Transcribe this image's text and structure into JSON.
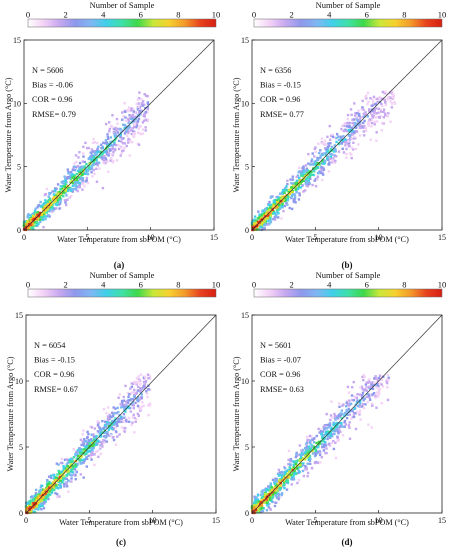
{
  "colorbar": {
    "title": "Number of Sample",
    "ticks": [
      0,
      2,
      4,
      6,
      8,
      10
    ],
    "range": [
      0,
      10
    ],
    "colors": [
      "#ffffff",
      "#f3d2f6",
      "#c7a8f0",
      "#8f98ec",
      "#7fb6f2",
      "#3fd0e8",
      "#3ee0a8",
      "#3ed94a",
      "#c9e83a",
      "#f6d12e",
      "#f39a2a",
      "#e8421e",
      "#d71f12"
    ]
  },
  "axes": {
    "xlabel": "Water Temperature from sbPOM (°C)",
    "ylabel": "Water Temperature from Argo (°C)",
    "xlim": [
      0,
      15
    ],
    "ylim": [
      0,
      15
    ],
    "xticks": [
      0,
      5,
      10,
      15
    ],
    "yticks": [
      0,
      5,
      10,
      15
    ],
    "reference_line": "1:1 diagonal"
  },
  "chart_data": [
    {
      "type": "heatmap",
      "panel_label": "(a)",
      "stats": {
        "n": "N = 5606",
        "bias": "Bias = -0.06",
        "cor": "COR = 0.96",
        "rmse": "RMSE= 0.79"
      },
      "x_extent": [
        0,
        10
      ],
      "y_extent": [
        0,
        11.5
      ]
    },
    {
      "type": "heatmap",
      "panel_label": "(b)",
      "stats": {
        "n": "N = 6356",
        "bias": "Bias = -0.15",
        "cor": "COR = 0.96",
        "rmse": "RMSE= 0.77"
      },
      "x_extent": [
        0,
        11.5
      ],
      "y_extent": [
        0,
        11
      ]
    },
    {
      "type": "heatmap",
      "panel_label": "(c)",
      "stats": {
        "n": "N = 6054",
        "bias": "Bias = -0.15",
        "cor": "COR = 0.96",
        "rmse": "RMSE= 0.67"
      },
      "x_extent": [
        0,
        10
      ],
      "y_extent": [
        0,
        10.5
      ]
    },
    {
      "type": "heatmap",
      "panel_label": "(d)",
      "stats": {
        "n": "N = 5601",
        "bias": "Bias = -0.07",
        "cor": "COR = 0.96",
        "rmse": "RMSE= 0.63"
      },
      "x_extent": [
        0,
        11
      ],
      "y_extent": [
        0,
        10.5
      ]
    }
  ]
}
